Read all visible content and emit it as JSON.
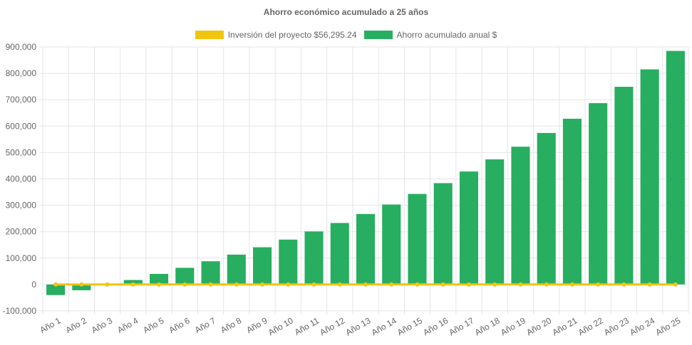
{
  "chart_data": {
    "type": "bar",
    "title": "Ahorro económico acumulado a 25 años",
    "categories": [
      "Año 1",
      "Año 2",
      "Año 3",
      "Año 4",
      "Año 5",
      "Año 6",
      "Año 7",
      "Año 8",
      "Año 9",
      "Año 10",
      "Año 11",
      "Año 12",
      "Año 13",
      "Año 14",
      "Año 15",
      "Año 16",
      "Año 17",
      "Año 18",
      "Año 19",
      "Año 20",
      "Año 21",
      "Año 22",
      "Año 23",
      "Año 24",
      "Año 25"
    ],
    "series": [
      {
        "name": "Inversión del proyecto $56,295.24",
        "type": "line",
        "color": "#f1c40f",
        "values": [
          0,
          0,
          0,
          0,
          0,
          0,
          0,
          0,
          0,
          0,
          0,
          0,
          0,
          0,
          0,
          0,
          0,
          0,
          0,
          0,
          0,
          0,
          0,
          0,
          0
        ]
      },
      {
        "name": "Ahorro acumulado anual $",
        "type": "bar",
        "color": "#27ae60",
        "values": [
          -40000,
          -22000,
          -2000,
          17000,
          40000,
          63000,
          88000,
          113000,
          141000,
          170000,
          201000,
          233000,
          267000,
          303000,
          343000,
          384000,
          428000,
          474000,
          522000,
          574000,
          628000,
          687000,
          749000,
          815000,
          885000
        ]
      }
    ],
    "y_ticks": [
      "900,000",
      "800,000",
      "700,000",
      "600,000",
      "500,000",
      "400,000",
      "300,000",
      "200,000",
      "100,000",
      "0",
      "-100,000"
    ],
    "ylim": [
      -100000,
      900000
    ],
    "xlabel": "",
    "ylabel": "",
    "grid": true,
    "legend_position": "top"
  }
}
